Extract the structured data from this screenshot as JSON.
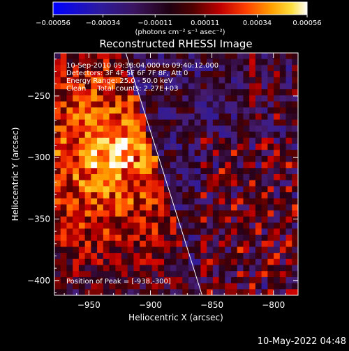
{
  "chart_data": {
    "type": "heatmap",
    "title": "Reconstructed RHESSI Image",
    "xlabel": "Heliocentric X (arcsec)",
    "ylabel": "Heliocentric Y (arcsec)",
    "xlim": [
      -978,
      -780
    ],
    "ylim": [
      -412,
      -215
    ],
    "x_ticks": [
      -950,
      -900,
      -850,
      -800
    ],
    "x_tick_labels": [
      "−950",
      "−900",
      "−850",
      "−800"
    ],
    "y_ticks": [
      -250,
      -300,
      -350,
      -400
    ],
    "y_tick_labels": [
      "−250",
      "−300",
      "−350",
      "−400"
    ],
    "colorbar": {
      "ticks": [
        -0.00056,
        -0.00034,
        -0.00011,
        0.00011,
        0.00034,
        0.00056
      ],
      "tick_labels": [
        "−0.00056",
        "−0.00034",
        "−0.00011",
        "0.00011",
        "0.00034",
        "0.00056"
      ],
      "units": "(photons cm⁻² s⁻¹ asec⁻²)",
      "range": [
        -0.00056,
        0.00056
      ]
    },
    "annotations": [
      "10-Sep-2010 09:38:04.000 to 09:40:12.000",
      "Detectors: 3F 4F 5F 6F 7F 8F, Att 0",
      "Energy Range: 25.0 - 50.0 keV",
      "Clean     Total counts: 2.27E+03"
    ],
    "peak_label": "Position of Peak = [-938,-300]",
    "limb_line": {
      "start": [
        -920,
        -215
      ],
      "end": [
        -858,
        -412
      ]
    }
  },
  "footer": {
    "timestamp": "10-May-2022 04:48"
  }
}
